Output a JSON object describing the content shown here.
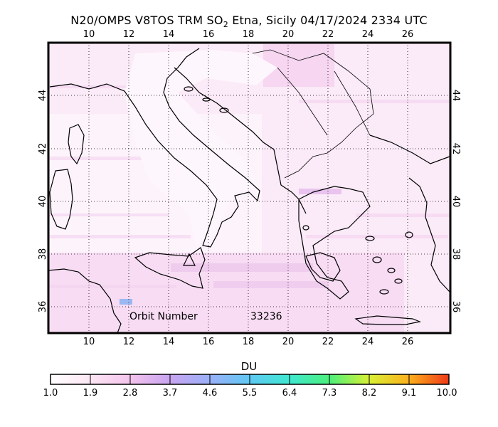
{
  "title": {
    "prefix": "N20/OMPS V8TOS TRM SO",
    "subscript": "2",
    "suffix": " Etna, Sicily 04/17/2024 2334 UTC"
  },
  "map": {
    "lon_range": [
      8.0,
      28.0
    ],
    "lat_range": [
      35.0,
      45.9
    ],
    "lon_ticks": [
      "10",
      "12",
      "14",
      "16",
      "18",
      "20",
      "22",
      "24",
      "26"
    ],
    "lat_ticks": [
      "36",
      "38",
      "40",
      "42",
      "44"
    ],
    "grid": "dotted",
    "volcano_marker": "triangle-icon",
    "background_color": "#fbe8f6",
    "coast_color": "#000000"
  },
  "annotation": {
    "orbit_label": "Orbit Number",
    "orbit_value": "33236"
  },
  "colorbar": {
    "title": "DU",
    "labels": [
      "1.0",
      "1.9",
      "2.8",
      "3.7",
      "4.6",
      "5.5",
      "6.4",
      "7.3",
      "8.2",
      "9.1",
      "10.0"
    ],
    "range": [
      1.0,
      10.0
    ],
    "colors": [
      "#ffffff",
      "#fce6f4",
      "#f4c4ec",
      "#c8a4f0",
      "#9ab0f8",
      "#5fc8f4",
      "#3ee8d0",
      "#4cf07c",
      "#d8f034",
      "#fcb01c",
      "#f03818"
    ]
  }
}
